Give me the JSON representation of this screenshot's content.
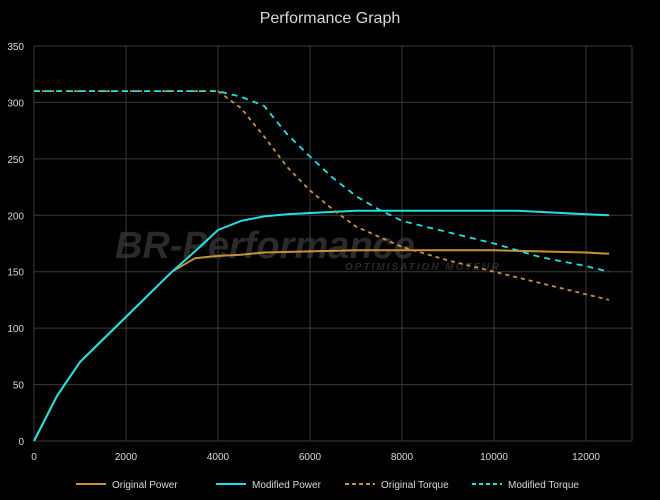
{
  "chart_data": {
    "type": "line",
    "title": "Performance Graph",
    "xlabel": "",
    "ylabel": "",
    "xlim": [
      0,
      13000
    ],
    "ylim": [
      0,
      350
    ],
    "x_ticks": [
      0,
      2000,
      4000,
      6000,
      8000,
      10000,
      12000
    ],
    "y_ticks": [
      0,
      50,
      100,
      150,
      200,
      250,
      300,
      350
    ],
    "grid": true,
    "legend_position": "bottom",
    "watermark": {
      "line1": "BR-Performance",
      "line2": "OPTIMISATION MOTEUR"
    },
    "series": [
      {
        "name": "Original Power",
        "color": "#c8913a",
        "style": "solid",
        "x": [
          0,
          500,
          1000,
          2000,
          3000,
          3500,
          4000,
          4500,
          5000,
          6000,
          7000,
          8000,
          9000,
          10000,
          11000,
          12000,
          12500
        ],
        "y": [
          0,
          40,
          70,
          110,
          150,
          162,
          164,
          165,
          167,
          168,
          169,
          169,
          169,
          169,
          168,
          167,
          166
        ]
      },
      {
        "name": "Modified Power",
        "color": "#22e0e0",
        "style": "solid",
        "x": [
          0,
          500,
          1000,
          2000,
          3000,
          3500,
          4000,
          4500,
          5000,
          5500,
          6000,
          7000,
          8000,
          9000,
          10000,
          10500,
          11000,
          12000,
          12500
        ],
        "y": [
          0,
          40,
          70,
          110,
          150,
          168,
          187,
          195,
          199,
          201,
          202,
          204,
          204,
          204,
          204,
          204,
          203,
          201,
          200
        ]
      },
      {
        "name": "Original Torque",
        "color": "#c8913a",
        "style": "dashed",
        "x": [
          0,
          4000,
          4500,
          5000,
          5500,
          6000,
          6500,
          7000,
          8000,
          9000,
          10000,
          11000,
          12000,
          12500
        ],
        "y": [
          310,
          310,
          295,
          270,
          243,
          222,
          205,
          190,
          172,
          160,
          150,
          140,
          130,
          125
        ]
      },
      {
        "name": "Modified Torque",
        "color": "#22e0e0",
        "style": "dashed",
        "x": [
          0,
          4000,
          4500,
          5000,
          5500,
          6000,
          6500,
          7000,
          7500,
          8000,
          9000,
          10000,
          11000,
          12000,
          12500
        ],
        "y": [
          310,
          310,
          305,
          297,
          272,
          252,
          233,
          217,
          205,
          195,
          185,
          175,
          163,
          155,
          150
        ]
      }
    ]
  }
}
